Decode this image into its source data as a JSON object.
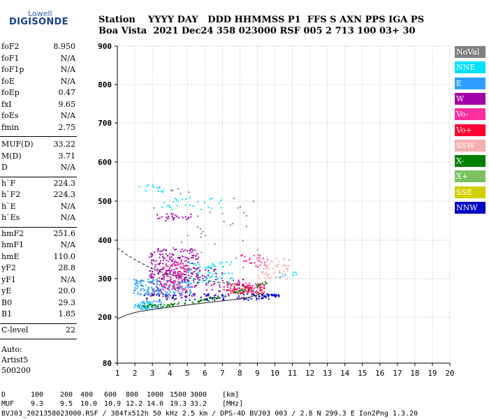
{
  "logo": {
    "line1": "Lowell",
    "line2": "DIGISONDE"
  },
  "header": {
    "line1": "Station    YYYY DAY   DDD HHMMSS P1  FFS S AXN PPS IGA PS",
    "line2": "Boa Vista  2021 Dec24 358 023000 RSF 005 2 713 100 03+ 30"
  },
  "params": [
    {
      "name": "foF2",
      "value": "8.950"
    },
    {
      "name": "foF1",
      "value": "N/A"
    },
    {
      "name": "foF1p",
      "value": "N/A"
    },
    {
      "name": "foE",
      "value": "N/A"
    },
    {
      "name": "foEp",
      "value": "0.47"
    },
    {
      "name": "fxI",
      "value": "9.65"
    },
    {
      "name": "foEs",
      "value": "N/A"
    },
    {
      "name": "fmin",
      "value": "2.75"
    },
    {
      "name": "MUF(D)",
      "value": "33.22"
    },
    {
      "name": "M(D)",
      "value": "3.71"
    },
    {
      "name": "D",
      "value": "N/A"
    },
    {
      "name": "h`F",
      "value": "224.3"
    },
    {
      "name": "h`F2",
      "value": "224.3"
    },
    {
      "name": "h`E",
      "value": "N/A"
    },
    {
      "name": "h`Es",
      "value": "N/A"
    },
    {
      "name": "hmF2",
      "value": "251.6"
    },
    {
      "name": "hmF1",
      "value": "N/A"
    },
    {
      "name": "hmE",
      "value": "110.0"
    },
    {
      "name": "yF2",
      "value": "28.8"
    },
    {
      "name": "yF1",
      "value": "N/A"
    },
    {
      "name": "yE",
      "value": "20.0"
    },
    {
      "name": "B0",
      "value": "29.3"
    },
    {
      "name": "B1",
      "value": "1.85"
    },
    {
      "name": "C-level",
      "value": "22"
    }
  ],
  "footnote": {
    "line1": "Auto:",
    "line2": "Artist5",
    "line3": "500200"
  },
  "legend": [
    {
      "label": "NoVal",
      "bg": "#808080",
      "fg": "#ffffff"
    },
    {
      "label": "NNE",
      "bg": "#00e0ff",
      "fg": "#ffffff"
    },
    {
      "label": "E",
      "bg": "#2f9fff",
      "fg": "#ffffff"
    },
    {
      "label": "W",
      "bg": "#a000a8",
      "fg": "#ffffff"
    },
    {
      "label": "Vo-",
      "bg": "#ff2ea0",
      "fg": "#ffffff"
    },
    {
      "label": "Vo+",
      "bg": "#ff0030",
      "fg": "#ffffff"
    },
    {
      "label": "SSW",
      "bg": "#f6b0b0",
      "fg": "#ffffff"
    },
    {
      "label": "X-",
      "bg": "#008000",
      "fg": "#ffffff"
    },
    {
      "label": "X+",
      "bg": "#7cc060",
      "fg": "#ffffff"
    },
    {
      "label": "SSE",
      "bg": "#d0d000",
      "fg": "#ffffff"
    },
    {
      "label": "NNW",
      "bg": "#0000c8",
      "fg": "#ffffff"
    }
  ],
  "chart_data": {
    "type": "scatter",
    "title": "",
    "xlabel": "",
    "ylabel": "",
    "xlim": [
      1,
      20
    ],
    "ylim": [
      80,
      900
    ],
    "x_ticks": [
      1,
      2,
      3,
      4,
      5,
      6,
      7,
      8,
      9,
      10,
      11,
      12,
      13,
      14,
      15,
      16,
      17,
      18,
      19,
      20
    ],
    "y_ticks": [
      80,
      200,
      300,
      400,
      500,
      600,
      700,
      800,
      900
    ],
    "grid": true,
    "legend_position": "right",
    "series": [
      {
        "name": "NNW",
        "color": "#0000c8",
        "clusters": [
          {
            "x": [
              2.5,
              9.8
            ],
            "y": [
              245,
              262
            ],
            "count": 90
          },
          {
            "x": [
              9.2,
              10.2
            ],
            "y": [
              254,
              262
            ],
            "count": 30
          }
        ]
      },
      {
        "name": "W",
        "color": "#a000a8",
        "clusters": [
          {
            "x": [
              2.8,
              5.6
            ],
            "y": [
              255,
              380
            ],
            "count": 260
          },
          {
            "x": [
              3.1,
              5.2
            ],
            "y": [
              450,
              470
            ],
            "count": 25
          },
          {
            "x": [
              2.8,
              7.0
            ],
            "y": [
              300,
              330
            ],
            "count": 70
          },
          {
            "x": [
              6.0,
              8.2
            ],
            "y": [
              250,
              300
            ],
            "count": 40
          }
        ]
      },
      {
        "name": "E",
        "color": "#2f9fff",
        "clusters": [
          {
            "x": [
              1.9,
              5.2
            ],
            "y": [
              260,
              300
            ],
            "count": 160
          },
          {
            "x": [
              2.0,
              3.5
            ],
            "y": [
              222,
              245
            ],
            "count": 50
          }
        ]
      },
      {
        "name": "NNE",
        "color": "#00e0ff",
        "clusters": [
          {
            "x": [
              5.0,
              7.6
            ],
            "y": [
              290,
              345
            ],
            "count": 70
          },
          {
            "x": [
              3.3,
              7.0
            ],
            "y": [
              480,
              510
            ],
            "count": 30
          },
          {
            "x": [
              2.2,
              3.6
            ],
            "y": [
              525,
              545
            ],
            "count": 14
          },
          {
            "x": [
              1.9,
              3.2
            ],
            "y": [
              220,
              240
            ],
            "count": 25
          },
          {
            "x": [
              10.2,
              11.2
            ],
            "y": [
              300,
              320
            ],
            "count": 10
          }
        ]
      },
      {
        "name": "Vo-",
        "color": "#ff2ea0",
        "clusters": [
          {
            "x": [
              3.6,
              5.0
            ],
            "y": [
              270,
              350
            ],
            "count": 90
          },
          {
            "x": [
              7.4,
              9.4
            ],
            "y": [
              265,
              290
            ],
            "count": 60
          },
          {
            "x": [
              8.0,
              9.6
            ],
            "y": [
              330,
              365
            ],
            "count": 30
          }
        ]
      },
      {
        "name": "Vo+",
        "color": "#ff0030",
        "clusters": [
          {
            "x": [
              7.2,
              9.4
            ],
            "y": [
              262,
              288
            ],
            "count": 60
          }
        ]
      },
      {
        "name": "SSW",
        "color": "#f6b0b0",
        "clusters": [
          {
            "x": [
              8.9,
              10.8
            ],
            "y": [
              300,
              360
            ],
            "count": 70
          }
        ]
      },
      {
        "name": "X-",
        "color": "#008000",
        "clusters": [
          {
            "x": [
              2.4,
              9.5
            ],
            "y": [
              230,
              292
            ],
            "count": 90,
            "trace": "oX"
          }
        ]
      },
      {
        "name": "NoVal",
        "color": "#808080",
        "clusters": [
          {
            "x": [
              3.0,
              9.0
            ],
            "y": [
              300,
              540
            ],
            "count": 40
          }
        ]
      }
    ],
    "curves": [
      {
        "name": "profile",
        "points": [
          [
            1.0,
            380
          ],
          [
            1.6,
            360
          ],
          [
            2.2,
            345
          ],
          [
            2.8,
            330
          ],
          [
            3.3,
            320
          ],
          [
            4.5,
            306
          ],
          [
            5.5,
            298
          ],
          [
            6.5,
            292
          ],
          [
            7.5,
            287
          ],
          [
            8.0,
            283
          ],
          [
            8.4,
            278
          ],
          [
            8.7,
            272
          ],
          [
            9.0,
            260
          ],
          [
            9.3,
            248
          ]
        ]
      },
      {
        "name": "trace",
        "points": [
          [
            1.0,
            195
          ],
          [
            1.5,
            205
          ],
          [
            2.0,
            212
          ],
          [
            3.0,
            220
          ],
          [
            4.0,
            226
          ],
          [
            5.0,
            231
          ],
          [
            6.0,
            237
          ],
          [
            7.0,
            242
          ],
          [
            8.0,
            247
          ],
          [
            8.6,
            252
          ],
          [
            9.0,
            258
          ],
          [
            9.25,
            262
          ]
        ]
      }
    ],
    "depth_markers": {
      "D": [
        "D",
        "100",
        "200",
        "400",
        "600",
        "800",
        "1000",
        "1500",
        "3000",
        "[km]"
      ],
      "MUF": [
        "MUF",
        "9.3",
        "9.5",
        "10.0",
        "10.9",
        "12.2",
        "14.0",
        "19.3",
        "33.2",
        "[MHz]"
      ]
    },
    "footer": "BVJ03_2021358023000.RSF / 384fx512h 50 kHz 2.5 km / DPS-4D BVJ03 003 / 2.8 N 299.3 E Ion2Png 1.3.20"
  }
}
